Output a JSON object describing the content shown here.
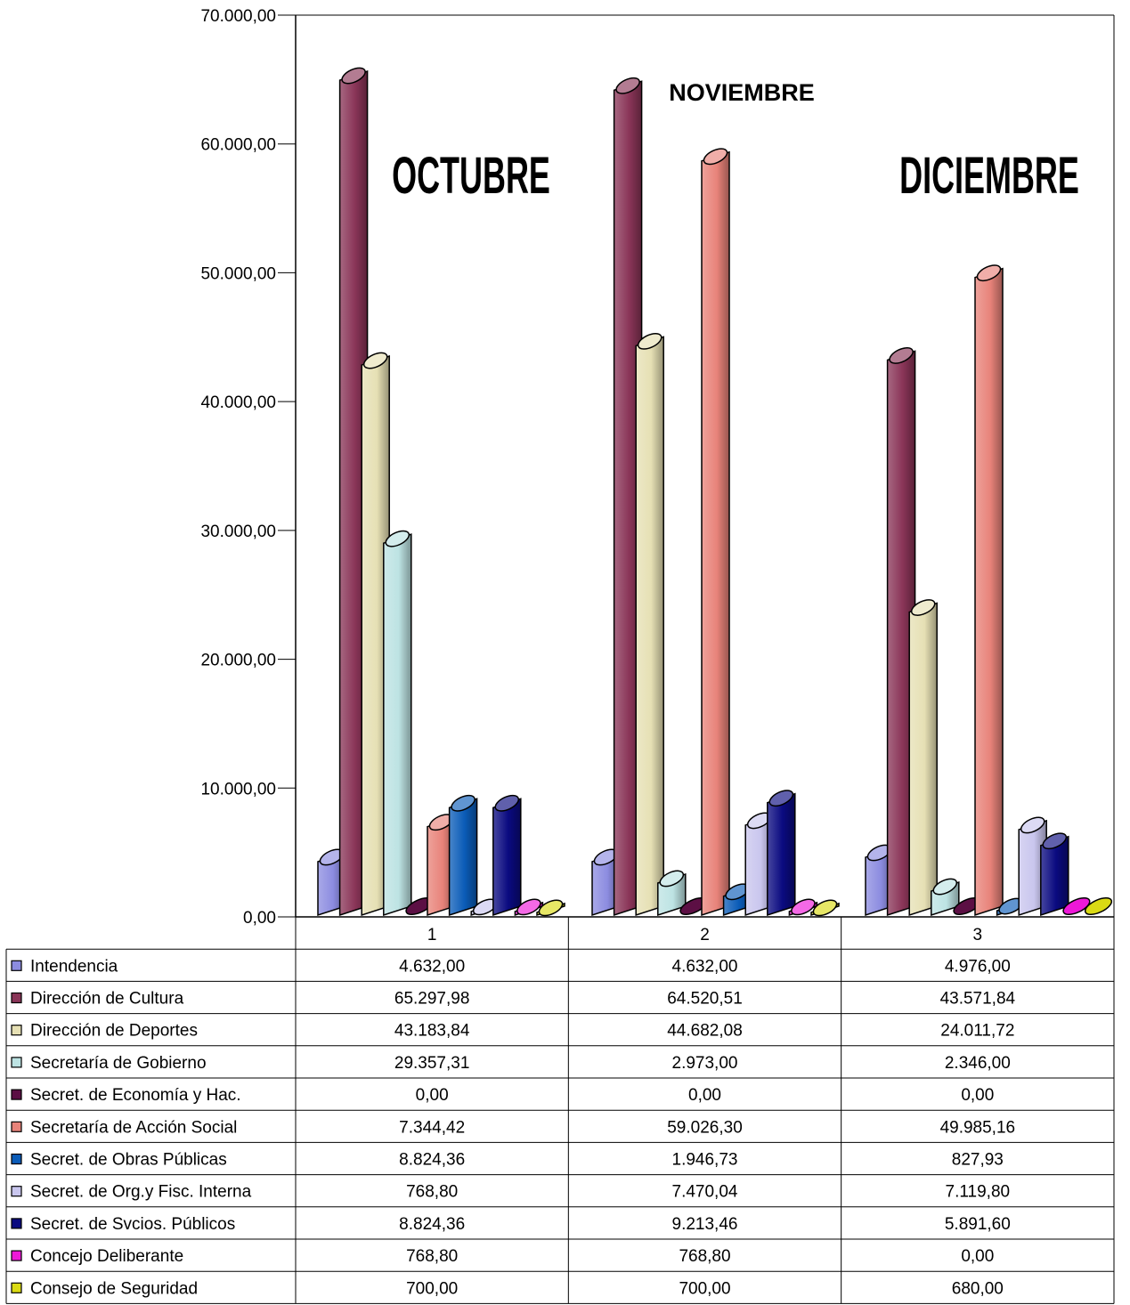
{
  "chart_data": {
    "type": "bar",
    "title": "",
    "xlabel": "",
    "ylabel": "",
    "ylim": [
      0,
      70000
    ],
    "y_ticks": [
      "0,00",
      "10.000,00",
      "20.000,00",
      "30.000,00",
      "40.000,00",
      "50.000,00",
      "60.000,00",
      "70.000,00"
    ],
    "categories": [
      "1",
      "2",
      "3"
    ],
    "annotations": [
      "OCTUBRE",
      "NOVIEMBRE",
      "DICIEMBRE"
    ],
    "series": [
      {
        "name": "Intendencia",
        "color": "#8c8ce0",
        "values": [
          4632.0,
          4632.0,
          4976.0
        ],
        "labels": [
          "4.632,00",
          "4.632,00",
          "4.976,00"
        ]
      },
      {
        "name": "Dirección de Cultura",
        "color": "#8a3558",
        "values": [
          65297.98,
          64520.51,
          43571.84
        ],
        "labels": [
          "65.297,98",
          "64.520,51",
          "43.571,84"
        ]
      },
      {
        "name": "Dirección de Deportes",
        "color": "#e6e0b4",
        "values": [
          43183.84,
          44682.08,
          24011.72
        ],
        "labels": [
          "43.183,84",
          "44.682,08",
          "24.011,72"
        ]
      },
      {
        "name": "Secretaría de Gobierno",
        "color": "#bde3e3",
        "values": [
          29357.31,
          2973.0,
          2346.0
        ],
        "labels": [
          "29.357,31",
          "2.973,00",
          "2.346,00"
        ]
      },
      {
        "name": "Secret. de Economía y Hac.",
        "color": "#5c0f44",
        "values": [
          0,
          0,
          0
        ],
        "labels": [
          "0,00",
          "0,00",
          "0,00"
        ]
      },
      {
        "name": "Secretaría de Acción Social",
        "color": "#e8837a",
        "values": [
          7344.42,
          59026.3,
          49985.16
        ],
        "labels": [
          "7.344,42",
          "59.026,30",
          "49.985,16"
        ]
      },
      {
        "name": "Secret. de  Obras Públicas",
        "color": "#0b5cb8",
        "values": [
          8824.36,
          1946.73,
          827.93
        ],
        "labels": [
          "8.824,36",
          "1.946,73",
          "827,93"
        ]
      },
      {
        "name": "Secret. de Org.y Fisc. Interna",
        "color": "#c9c6ee",
        "values": [
          768.8,
          7470.04,
          7119.8
        ],
        "labels": [
          "768,80",
          "7.470,04",
          "7.119,80"
        ]
      },
      {
        "name": "Secret. de Svcios. Públicos",
        "color": "#0a0a80",
        "values": [
          8824.36,
          9213.46,
          5891.6
        ],
        "labels": [
          "8.824,36",
          "9.213,46",
          "5.891,60"
        ]
      },
      {
        "name": "Concejo Deliberante",
        "color": "#ee18d8",
        "values": [
          768.8,
          768.8,
          0
        ],
        "labels": [
          "768,80",
          "768,80",
          "0,00"
        ]
      },
      {
        "name": "Consejo de Seguridad",
        "color": "#dada14",
        "values": [
          700.0,
          700.0,
          680.0
        ],
        "labels": [
          "700,00",
          "700,00",
          "680,00"
        ]
      }
    ]
  }
}
